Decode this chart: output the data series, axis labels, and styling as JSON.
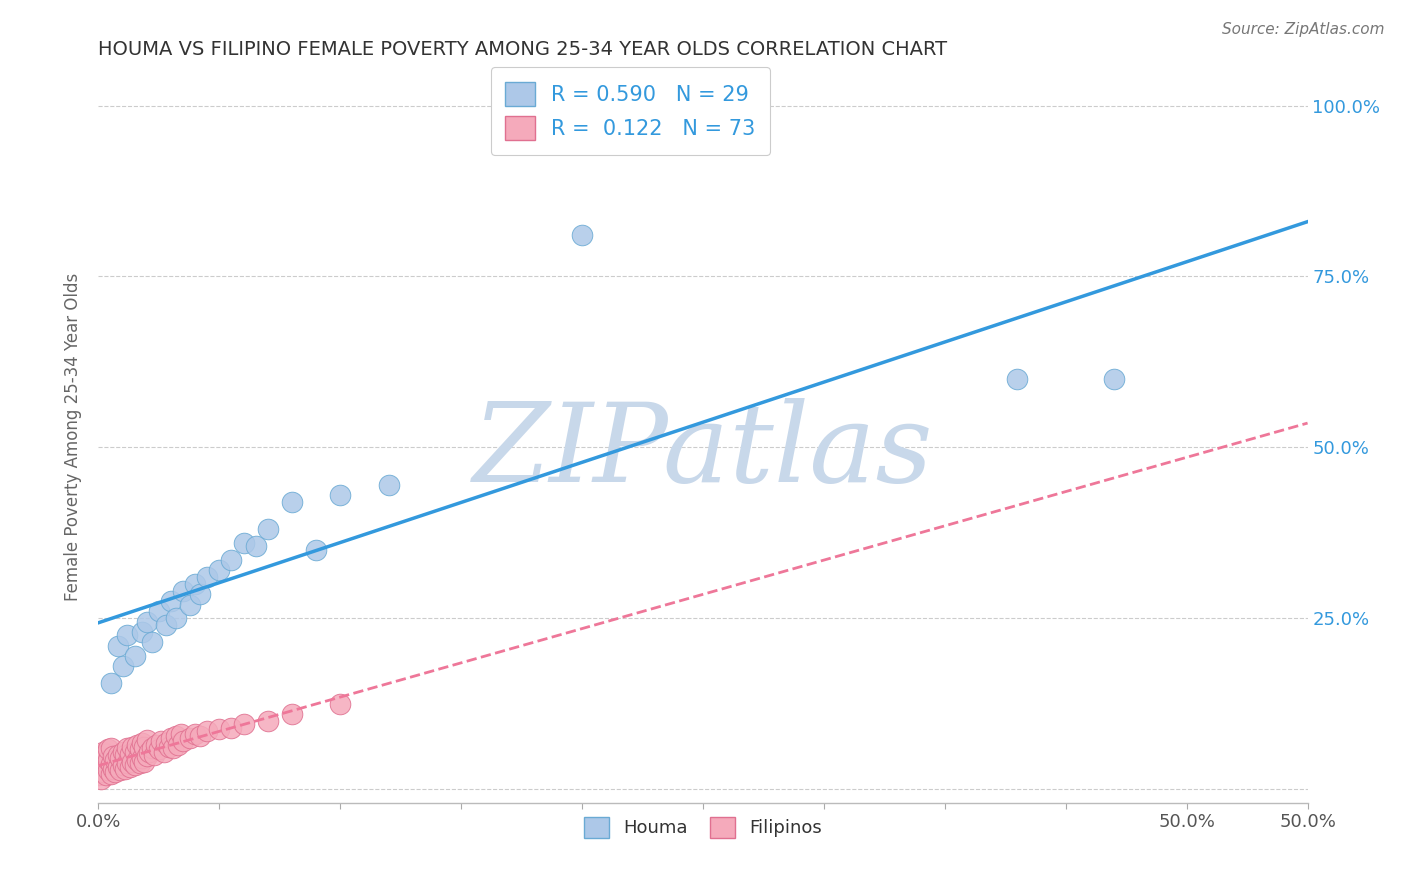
{
  "title": "HOUMA VS FILIPINO FEMALE POVERTY AMONG 25-34 YEAR OLDS CORRELATION CHART",
  "source": "Source: ZipAtlas.com",
  "xlim": [
    0.0,
    0.5
  ],
  "ylim": [
    -0.02,
    1.05
  ],
  "houma_R": 0.59,
  "houma_N": 29,
  "filipino_R": 0.122,
  "filipino_N": 73,
  "houma_color": "#adc8e8",
  "filipino_color": "#f5aabb",
  "houma_edge_color": "#6aaad4",
  "filipino_edge_color": "#e07090",
  "houma_line_color": "#3399dd",
  "filipino_line_color": "#ee7799",
  "watermark": "ZIPatlas",
  "watermark_color": "#c8d8ea",
  "bg_color": "#ffffff",
  "grid_color": "#cccccc",
  "title_color": "#333333",
  "legend_label_houma": "Houma",
  "legend_label_filipino": "Filipinos",
  "houma_scatter_x": [
    0.005,
    0.008,
    0.01,
    0.012,
    0.015,
    0.018,
    0.02,
    0.022,
    0.025,
    0.028,
    0.03,
    0.032,
    0.035,
    0.038,
    0.04,
    0.042,
    0.045,
    0.05,
    0.055,
    0.06,
    0.065,
    0.07,
    0.08,
    0.09,
    0.1,
    0.12,
    0.38,
    0.42,
    0.2
  ],
  "houma_scatter_y": [
    0.155,
    0.21,
    0.18,
    0.225,
    0.195,
    0.23,
    0.245,
    0.215,
    0.26,
    0.24,
    0.275,
    0.25,
    0.29,
    0.27,
    0.3,
    0.285,
    0.31,
    0.32,
    0.335,
    0.36,
    0.355,
    0.38,
    0.42,
    0.35,
    0.43,
    0.445,
    0.6,
    0.6,
    0.81
  ],
  "filipino_scatter_x": [
    0.0,
    0.0,
    0.0,
    0.001,
    0.001,
    0.001,
    0.002,
    0.002,
    0.002,
    0.003,
    0.003,
    0.003,
    0.004,
    0.004,
    0.004,
    0.005,
    0.005,
    0.005,
    0.006,
    0.006,
    0.007,
    0.007,
    0.008,
    0.008,
    0.009,
    0.009,
    0.01,
    0.01,
    0.011,
    0.011,
    0.012,
    0.012,
    0.013,
    0.013,
    0.014,
    0.014,
    0.015,
    0.015,
    0.016,
    0.016,
    0.017,
    0.017,
    0.018,
    0.018,
    0.019,
    0.019,
    0.02,
    0.02,
    0.021,
    0.022,
    0.023,
    0.024,
    0.025,
    0.026,
    0.027,
    0.028,
    0.029,
    0.03,
    0.031,
    0.032,
    0.033,
    0.034,
    0.035,
    0.038,
    0.04,
    0.042,
    0.045,
    0.05,
    0.055,
    0.06,
    0.07,
    0.08,
    0.1
  ],
  "filipino_scatter_y": [
    0.02,
    0.035,
    0.05,
    0.015,
    0.03,
    0.045,
    0.025,
    0.04,
    0.055,
    0.02,
    0.038,
    0.052,
    0.028,
    0.043,
    0.058,
    0.022,
    0.037,
    0.06,
    0.03,
    0.048,
    0.025,
    0.042,
    0.032,
    0.05,
    0.028,
    0.045,
    0.035,
    0.055,
    0.03,
    0.05,
    0.038,
    0.06,
    0.032,
    0.052,
    0.04,
    0.062,
    0.035,
    0.055,
    0.042,
    0.065,
    0.038,
    0.058,
    0.045,
    0.068,
    0.04,
    0.062,
    0.048,
    0.072,
    0.055,
    0.06,
    0.05,
    0.065,
    0.058,
    0.07,
    0.055,
    0.068,
    0.062,
    0.075,
    0.06,
    0.078,
    0.065,
    0.08,
    0.07,
    0.075,
    0.08,
    0.078,
    0.085,
    0.088,
    0.09,
    0.095,
    0.1,
    0.11,
    0.125
  ],
  "yticks": [
    0.0,
    0.25,
    0.5,
    0.75,
    1.0
  ],
  "ytick_labels": [
    "",
    "25.0%",
    "50.0%",
    "75.0%",
    "100.0%"
  ],
  "xticks": [
    0.0,
    0.05,
    0.1,
    0.15,
    0.2,
    0.25,
    0.3,
    0.35,
    0.4,
    0.45,
    0.5
  ],
  "xtick_labels_show": {
    "0.0": "0.0%",
    "0.5": "50.0%"
  }
}
